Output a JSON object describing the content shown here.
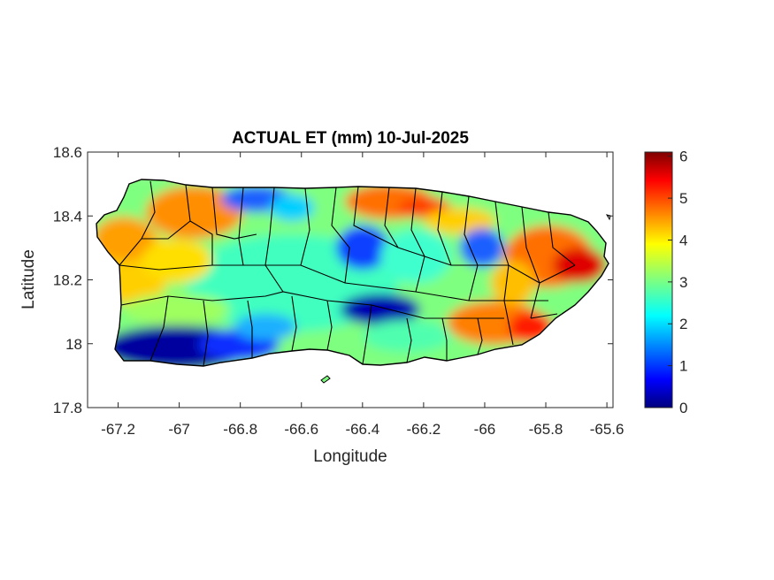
{
  "chart_data": {
    "type": "heatmap",
    "title": "ACTUAL ET (mm) 10-Jul-2025",
    "xlabel": "Longitude",
    "ylabel": "Latitude",
    "xlim": [
      -67.3,
      -65.58
    ],
    "ylim": [
      17.8,
      18.6
    ],
    "xticks": [
      -67.2,
      -67,
      -66.8,
      -66.6,
      -66.4,
      -66.2,
      -66,
      -65.8,
      -65.6
    ],
    "xtick_labels": [
      "-67.2",
      "-67",
      "-66.8",
      "-66.6",
      "-66.4",
      "-66.2",
      "-66",
      "-65.8",
      "-65.6"
    ],
    "yticks": [
      17.8,
      18,
      18.2,
      18.4,
      18.6
    ],
    "ytick_labels": [
      "17.8",
      "18",
      "18.2",
      "18.4",
      "18.6"
    ],
    "colorbar": {
      "colormap": "jet",
      "min": 0,
      "max": 6.1,
      "ticks": [
        0,
        1,
        2,
        3,
        4,
        5,
        6
      ],
      "tick_labels": [
        "0",
        "1",
        "2",
        "3",
        "4",
        "5",
        "6"
      ]
    },
    "grid": false,
    "regions": [
      {
        "name": "northwest",
        "approx_value": 4.4
      },
      {
        "name": "northwest-coast-around-67.0",
        "approx_value": 2.5
      },
      {
        "name": "north-coast-around-66.8",
        "approx_value": 1.2
      },
      {
        "name": "west-coast",
        "approx_value": 4.2
      },
      {
        "name": "north-central-coast",
        "approx_value": 5.2
      },
      {
        "name": "central-east",
        "approx_value": 1.5
      },
      {
        "name": "south-central",
        "approx_value": 0.9
      },
      {
        "name": "southwest-coast",
        "approx_value": 0.3
      },
      {
        "name": "east",
        "approx_value": 5.5
      },
      {
        "name": "southeast",
        "approx_value": 5.3
      },
      {
        "name": "central",
        "approx_value": 3.0
      }
    ]
  },
  "colors": {
    "coastline": "#000000",
    "axes": "#262626",
    "background": "#ffffff"
  }
}
